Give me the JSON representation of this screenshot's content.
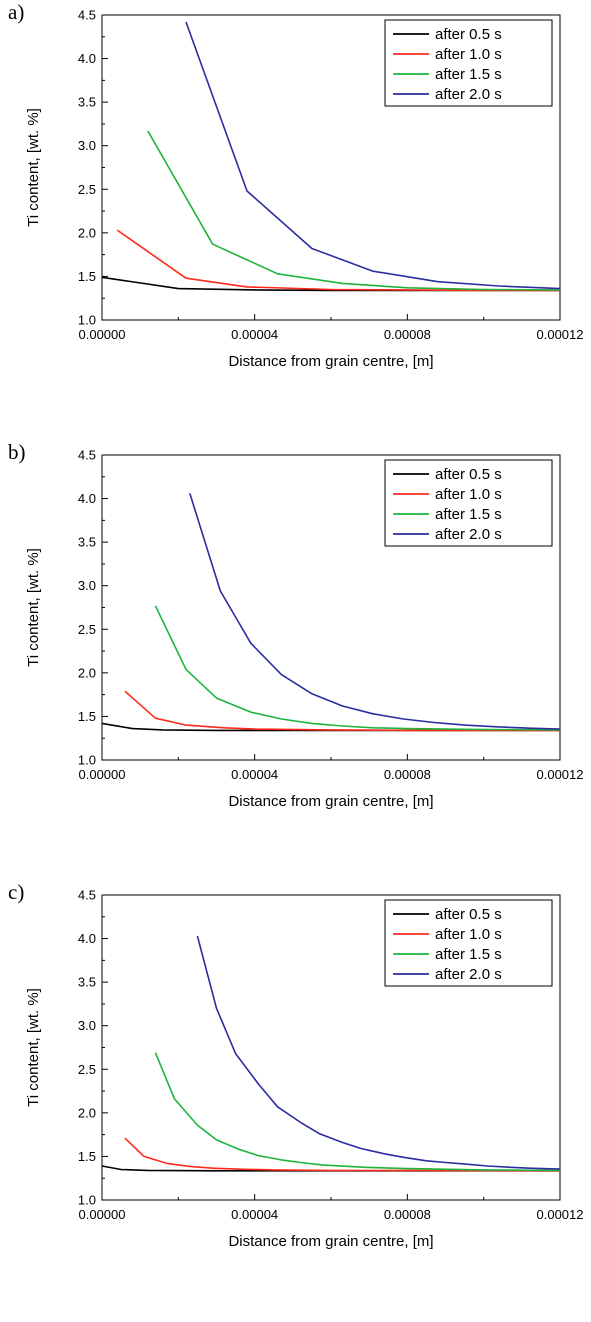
{
  "chart_data": [
    {
      "panel_label": "a)",
      "type": "line",
      "xlabel": "Distance from grain centre, [m]",
      "ylabel": "Ti content, [wt. %]",
      "xlim": [
        0,
        0.00012
      ],
      "ylim": [
        1.0,
        4.5
      ],
      "x_ticks": [
        "0.00000",
        "0.00004",
        "0.00008",
        "0.00012"
      ],
      "y_ticks": [
        "1.0",
        "1.5",
        "2.0",
        "2.5",
        "3.0",
        "3.5",
        "4.0",
        "4.5"
      ],
      "legend_position": "top-right",
      "series": [
        {
          "name": "after 0.5 s",
          "color": "#000000",
          "points": [
            [
              0,
              1.49
            ],
            [
              2e-05,
              1.36
            ],
            [
              4e-05,
              1.345
            ],
            [
              6e-05,
              1.34
            ],
            [
              8e-05,
              1.34
            ],
            [
              0.0001,
              1.34
            ],
            [
              0.00012,
              1.34
            ]
          ]
        },
        {
          "name": "after 1.0 s",
          "color": "#ff2a1a",
          "points": [
            [
              4e-06,
              2.03
            ],
            [
              2.2e-05,
              1.48
            ],
            [
              3.8e-05,
              1.38
            ],
            [
              6e-05,
              1.35
            ],
            [
              8e-05,
              1.345
            ],
            [
              0.0001,
              1.34
            ],
            [
              0.00012,
              1.34
            ]
          ]
        },
        {
          "name": "after 1.5 s",
          "color": "#1db53c",
          "points": [
            [
              1.2e-05,
              3.17
            ],
            [
              2.9e-05,
              1.87
            ],
            [
              4.6e-05,
              1.53
            ],
            [
              6.3e-05,
              1.42
            ],
            [
              8e-05,
              1.37
            ],
            [
              0.0001,
              1.35
            ],
            [
              0.00012,
              1.345
            ]
          ]
        },
        {
          "name": "after 2.0 s",
          "color": "#2b2da0",
          "points": [
            [
              2.2e-05,
              4.42
            ],
            [
              3.8e-05,
              2.48
            ],
            [
              5.5e-05,
              1.82
            ],
            [
              7.1e-05,
              1.56
            ],
            [
              8.8e-05,
              1.44
            ],
            [
              0.000104,
              1.39
            ],
            [
              0.00012,
              1.36
            ]
          ]
        }
      ]
    },
    {
      "panel_label": "b)",
      "type": "line",
      "xlabel": "Distance from grain centre, [m]",
      "ylabel": "Ti content, [wt. %]",
      "xlim": [
        0,
        0.00012
      ],
      "ylim": [
        1.0,
        4.5
      ],
      "x_ticks": [
        "0.00000",
        "0.00004",
        "0.00008",
        "0.00012"
      ],
      "y_ticks": [
        "1.0",
        "1.5",
        "2.0",
        "2.5",
        "3.0",
        "3.5",
        "4.0",
        "4.5"
      ],
      "legend_position": "top-right",
      "series": [
        {
          "name": "after 0.5 s",
          "color": "#000000",
          "points": [
            [
              0,
              1.42
            ],
            [
              8e-06,
              1.36
            ],
            [
              1.6e-05,
              1.345
            ],
            [
              3e-05,
              1.34
            ],
            [
              5e-05,
              1.34
            ],
            [
              8e-05,
              1.34
            ],
            [
              0.00012,
              1.34
            ]
          ]
        },
        {
          "name": "after 1.0 s",
          "color": "#ff2a1a",
          "points": [
            [
              6e-06,
              1.79
            ],
            [
              1.4e-05,
              1.48
            ],
            [
              2.2e-05,
              1.4
            ],
            [
              3.2e-05,
              1.37
            ],
            [
              4e-05,
              1.355
            ],
            [
              6e-05,
              1.345
            ],
            [
              8e-05,
              1.34
            ],
            [
              0.00012,
              1.34
            ]
          ]
        },
        {
          "name": "after 1.5 s",
          "color": "#1db53c",
          "points": [
            [
              1.4e-05,
              2.77
            ],
            [
              2.2e-05,
              2.04
            ],
            [
              3e-05,
              1.71
            ],
            [
              3.9e-05,
              1.55
            ],
            [
              4.7e-05,
              1.47
            ],
            [
              5.5e-05,
              1.42
            ],
            [
              6.3e-05,
              1.39
            ],
            [
              7.1e-05,
              1.37
            ],
            [
              8e-05,
              1.36
            ],
            [
              0.0001,
              1.35
            ],
            [
              0.00012,
              1.345
            ]
          ]
        },
        {
          "name": "after 2.0 s",
          "color": "#2b2da0",
          "points": [
            [
              2.3e-05,
              4.06
            ],
            [
              3.1e-05,
              2.94
            ],
            [
              3.9e-05,
              2.34
            ],
            [
              4.7e-05,
              1.98
            ],
            [
              5.5e-05,
              1.76
            ],
            [
              6.3e-05,
              1.62
            ],
            [
              7.1e-05,
              1.53
            ],
            [
              7.9e-05,
              1.47
            ],
            [
              8.7e-05,
              1.43
            ],
            [
              9.5e-05,
              1.4
            ],
            [
              0.000104,
              1.38
            ],
            [
              0.000112,
              1.365
            ],
            [
              0.00012,
              1.355
            ]
          ]
        }
      ]
    },
    {
      "panel_label": "c)",
      "type": "line",
      "xlabel": "Distance from grain centre, [m]",
      "ylabel": "Ti content, [wt. %]",
      "xlim": [
        0,
        0.00012
      ],
      "ylim": [
        1.0,
        4.5
      ],
      "x_ticks": [
        "0.00000",
        "0.00004",
        "0.00008",
        "0.00012"
      ],
      "y_ticks": [
        "1.0",
        "1.5",
        "2.0",
        "2.5",
        "3.0",
        "3.5",
        "4.0",
        "4.5"
      ],
      "legend_position": "top-right",
      "series": [
        {
          "name": "after 0.5 s",
          "color": "#000000",
          "points": [
            [
              0,
              1.39
            ],
            [
              5e-06,
              1.35
            ],
            [
              1.2e-05,
              1.34
            ],
            [
              3e-05,
              1.335
            ],
            [
              6e-05,
              1.335
            ],
            [
              0.00012,
              1.335
            ]
          ]
        },
        {
          "name": "after 1.0 s",
          "color": "#ff2a1a",
          "points": [
            [
              6e-06,
              1.71
            ],
            [
              1.1e-05,
              1.5
            ],
            [
              1.7e-05,
              1.42
            ],
            [
              2.3e-05,
              1.385
            ],
            [
              2.9e-05,
              1.365
            ],
            [
              3.5e-05,
              1.355
            ],
            [
              4.5e-05,
              1.345
            ],
            [
              6e-05,
              1.34
            ],
            [
              0.00012,
              1.335
            ]
          ]
        },
        {
          "name": "after 1.5 s",
          "color": "#1db53c",
          "points": [
            [
              1.4e-05,
              2.69
            ],
            [
              1.9e-05,
              2.16
            ],
            [
              2.5e-05,
              1.86
            ],
            [
              3e-05,
              1.69
            ],
            [
              3.6e-05,
              1.58
            ],
            [
              4.1e-05,
              1.51
            ],
            [
              4.7e-05,
              1.46
            ],
            [
              5.2e-05,
              1.43
            ],
            [
              5.8e-05,
              1.4
            ],
            [
              6.9e-05,
              1.375
            ],
            [
              8e-05,
              1.36
            ],
            [
              0.0001,
              1.345
            ],
            [
              0.00012,
              1.34
            ]
          ]
        },
        {
          "name": "after 2.0 s",
          "color": "#2b2da0",
          "points": [
            [
              2.5e-05,
              4.03
            ],
            [
              3e-05,
              3.2
            ],
            [
              3.5e-05,
              2.68
            ],
            [
              4.1e-05,
              2.33
            ],
            [
              4.6e-05,
              2.07
            ],
            [
              5.2e-05,
              1.89
            ],
            [
              5.7e-05,
              1.76
            ],
            [
              6.3e-05,
              1.66
            ],
            [
              6.8e-05,
              1.59
            ],
            [
              7.4e-05,
              1.53
            ],
            [
              7.9e-05,
              1.49
            ],
            [
              8.5e-05,
              1.45
            ],
            [
              9e-05,
              1.43
            ],
            [
              9.6e-05,
              1.41
            ],
            [
              0.000101,
              1.39
            ],
            [
              0.000107,
              1.375
            ],
            [
              0.000112,
              1.365
            ],
            [
              0.00012,
              1.355
            ]
          ]
        }
      ]
    }
  ]
}
